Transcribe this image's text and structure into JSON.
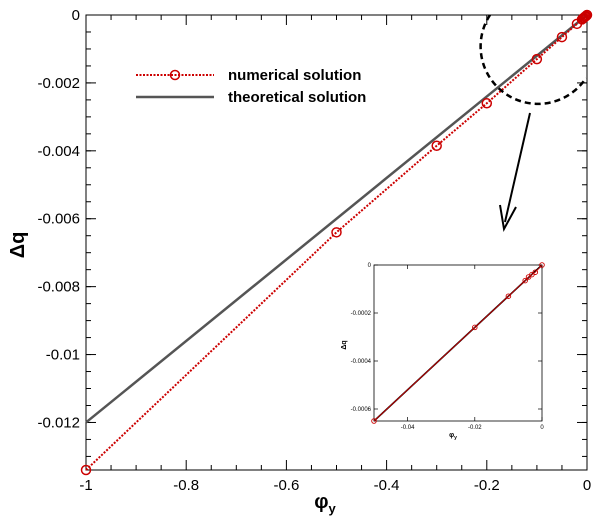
{
  "chart_data": {
    "type": "line",
    "xlabel": "φ",
    "xlabel_sub": "y",
    "ylabel": "Δq",
    "xlim": [
      -1,
      0
    ],
    "ylim": [
      -0.0134,
      0
    ],
    "xticks": [
      -1,
      -0.8,
      -0.6,
      -0.4,
      -0.2,
      0
    ],
    "xtick_labels": [
      "-1",
      "-0.8",
      "-0.6",
      "-0.4",
      "-0.2",
      "0"
    ],
    "yticks": [
      0,
      -0.002,
      -0.004,
      -0.006,
      -0.008,
      -0.01,
      -0.012
    ],
    "ytick_labels": [
      "0",
      "-0.002",
      "-0.004",
      "-0.006",
      "-0.008",
      "-0.01",
      "-0.012"
    ],
    "grid": false,
    "legend": "upper-left",
    "series": [
      {
        "name": "numerical solution",
        "color": "#cc0000",
        "style": "dotted-with-circle-markers",
        "x": [
          -1,
          -0.5,
          -0.3,
          -0.2,
          -0.1,
          -0.05,
          -0.02,
          -0.01,
          -0.008,
          -0.006,
          -0.004,
          -0.002,
          0
        ],
        "y": [
          -0.0134,
          -0.0064,
          -0.00385,
          -0.0026,
          -0.0013,
          -0.00065,
          -0.00026,
          -0.00013,
          -0.0001,
          -8e-05,
          -5e-05,
          -3e-05,
          0
        ]
      },
      {
        "name": "theoretical solution",
        "color": "#555555",
        "style": "solid",
        "x": [
          -1,
          0
        ],
        "y": [
          -0.012,
          0
        ]
      }
    ],
    "inset": {
      "xlabel": "φ",
      "xlabel_sub": "y",
      "ylabel": "Δq",
      "xlim": [
        -0.05,
        0
      ],
      "ylim": [
        -0.00065,
        0
      ],
      "xticks": [
        -0.04,
        -0.02,
        0
      ],
      "xtick_labels": [
        "-0.04",
        "-0.02",
        "0"
      ],
      "yticks": [
        0,
        -0.0002,
        -0.0004,
        -0.0006
      ],
      "ytick_labels": [
        "0",
        "-0.0002",
        "-0.0004",
        "-0.0006"
      ],
      "series": [
        {
          "name": "numerical solution",
          "x": [
            -0.05,
            -0.02,
            -0.01,
            -0.005,
            -0.004,
            -0.003,
            -0.002,
            0
          ],
          "y": [
            -0.00065,
            -0.00026,
            -0.00013,
            -6.5e-05,
            -5e-05,
            -4e-05,
            -3e-05,
            0
          ]
        },
        {
          "name": "theoretical solution",
          "x": [
            -0.05,
            0
          ],
          "y": [
            -0.00065,
            0
          ]
        }
      ]
    }
  }
}
